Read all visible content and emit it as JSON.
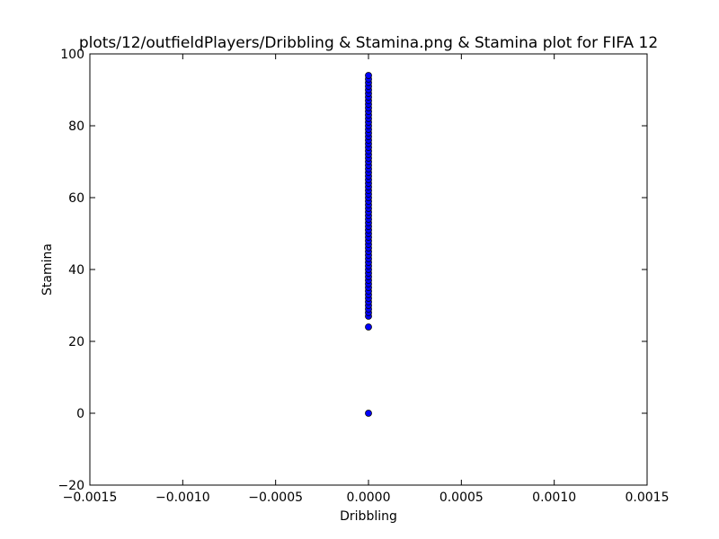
{
  "colors": {
    "marker_fill": "#0000ff",
    "marker_edge": "#000000",
    "axes": "#000000",
    "background": "#ffffff"
  },
  "chart_data": {
    "type": "scatter",
    "title": "plots/12/outfieldPlayers/Dribbling & Stamina.png & Stamina plot for FIFA 12",
    "xlabel": "Dribbling",
    "ylabel": "Stamina",
    "xlim": [
      -0.0015,
      0.0015
    ],
    "ylim": [
      -20,
      100
    ],
    "xticks": [
      -0.0015,
      -0.001,
      -0.0005,
      0,
      0.0005,
      0.001,
      0.0015
    ],
    "xtick_labels": [
      "−0.0015",
      "−0.0010",
      "−0.0005",
      "0.0000",
      "0.0005",
      "0.0010",
      "0.0015"
    ],
    "yticks": [
      -20,
      0,
      20,
      40,
      60,
      80,
      100
    ],
    "ytick_labels": [
      "−20",
      "0",
      "20",
      "40",
      "60",
      "80",
      "100"
    ],
    "grid": false,
    "series": [
      {
        "x": [
          0,
          0,
          0,
          0,
          0,
          0,
          0,
          0,
          0,
          0,
          0,
          0,
          0,
          0,
          0,
          0,
          0,
          0,
          0,
          0,
          0,
          0,
          0,
          0,
          0,
          0,
          0,
          0,
          0,
          0,
          0,
          0,
          0,
          0,
          0,
          0,
          0,
          0,
          0,
          0,
          0,
          0,
          0,
          0,
          0,
          0,
          0,
          0,
          0,
          0,
          0,
          0,
          0,
          0,
          0,
          0,
          0,
          0,
          0,
          0,
          0,
          0,
          0,
          0,
          0,
          0,
          0,
          0,
          0,
          0
        ],
        "y": [
          0,
          24,
          27,
          28,
          29,
          30,
          31,
          32,
          33,
          34,
          35,
          36,
          37,
          38,
          39,
          40,
          41,
          42,
          43,
          44,
          45,
          46,
          47,
          48,
          49,
          50,
          51,
          52,
          53,
          54,
          55,
          56,
          57,
          58,
          59,
          60,
          61,
          62,
          63,
          64,
          65,
          66,
          67,
          68,
          69,
          70,
          71,
          72,
          73,
          74,
          75,
          76,
          77,
          78,
          79,
          80,
          81,
          82,
          83,
          84,
          85,
          86,
          87,
          88,
          89,
          90,
          91,
          92,
          93,
          94
        ]
      }
    ]
  }
}
